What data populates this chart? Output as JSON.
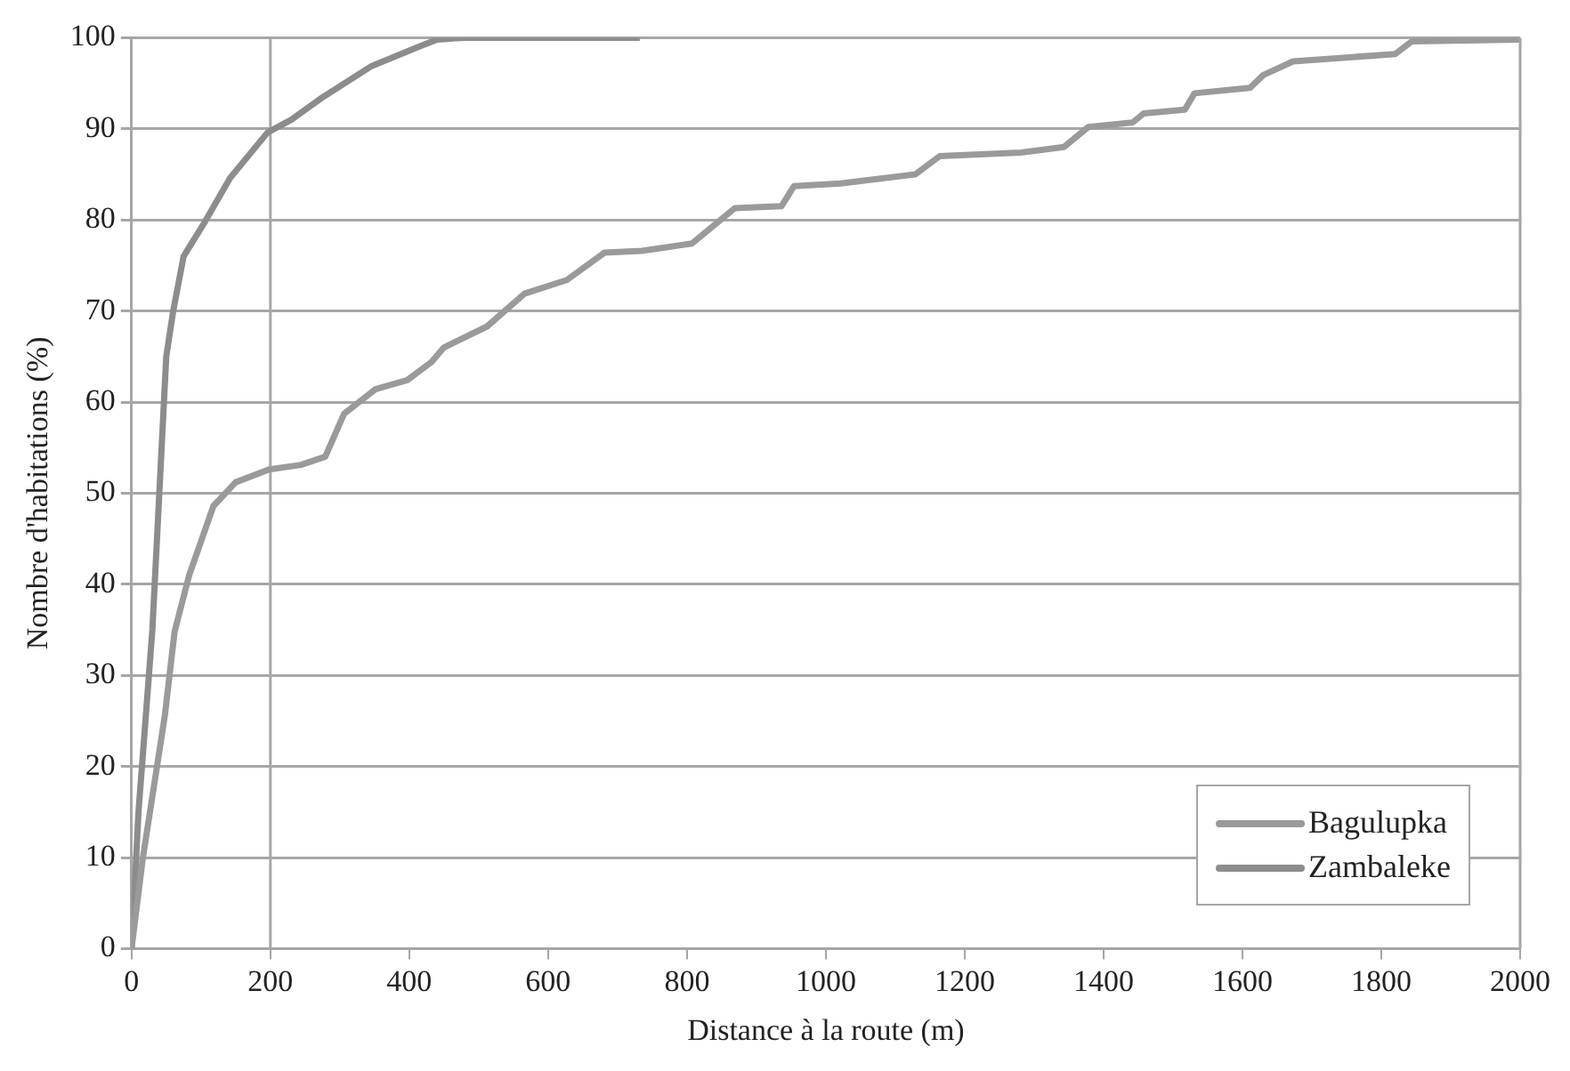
{
  "chart_data": {
    "type": "line",
    "xlabel": "Distance à la route (m)",
    "ylabel": "Nombre d'habitations (%)",
    "xlim": [
      0,
      2000
    ],
    "xticks": [
      0,
      200,
      400,
      600,
      800,
      1000,
      1200,
      1400,
      1600,
      1800,
      2000
    ],
    "ylim": [
      0,
      100
    ],
    "yticks": [
      0,
      10,
      20,
      30,
      40,
      50,
      60,
      70,
      80,
      90,
      100
    ],
    "grid": "y",
    "legend": "bottom right",
    "marker": "none",
    "line_style": "solid",
    "ref_lines": [
      {
        "axis": "x",
        "value": 200,
        "color": "#a6a6a6"
      }
    ],
    "series": [
      {
        "name": "Bagulupka",
        "color": "#9a9a9a",
        "x": [
          0,
          16,
          48,
          62,
          83,
          118,
          150,
          198,
          244,
          279,
          306,
          351,
          397,
          432,
          450,
          512,
          566,
          627,
          681,
          735,
          807,
          869,
          936,
          954,
          1021,
          1129,
          1164,
          1281,
          1343,
          1378,
          1442,
          1458,
          1517,
          1531,
          1611,
          1630,
          1673,
          1745,
          1820,
          1844,
          2000
        ],
        "values": [
          0,
          9.8,
          25.6,
          34.8,
          41,
          48.6,
          51.2,
          52.6,
          53.1,
          54,
          58.7,
          61.4,
          62.4,
          64.4,
          66,
          68.3,
          71.9,
          73.4,
          76.4,
          76.6,
          77.4,
          81.3,
          81.5,
          83.7,
          84,
          85,
          87,
          87.4,
          88,
          90.2,
          90.7,
          91.7,
          92.1,
          93.9,
          94.5,
          95.9,
          97.4,
          97.8,
          98.2,
          99.6,
          99.8
        ]
      },
      {
        "name": "Zambaleke",
        "color": "#8c8c8c",
        "x": [
          0,
          10,
          20,
          30,
          40,
          50,
          60,
          75,
          105,
          142,
          196,
          230,
          276,
          346,
          413,
          440,
          480,
          732
        ],
        "values": [
          0,
          15,
          25,
          35,
          50,
          65,
          70,
          76,
          79.7,
          84.6,
          89.6,
          91,
          93.5,
          96.9,
          99,
          99.8,
          100,
          100
        ]
      }
    ]
  }
}
